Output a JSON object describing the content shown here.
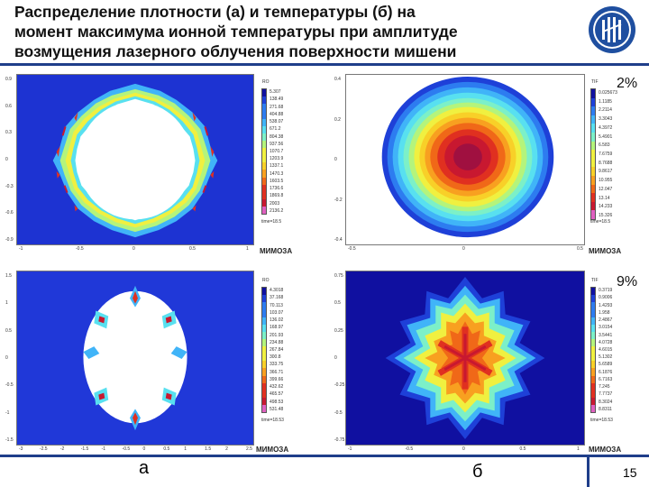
{
  "title": {
    "line1": "Распределение плотности (а) и температуры (б) на",
    "line2": "момент максимума ионной температуры при амплитуде",
    "line3": "возмущения лазерного облучения поверхности мишени"
  },
  "labels": {
    "left_column": "а",
    "right_column": "б",
    "page_number": "15",
    "software": "МИМОЗА",
    "amplitude_top": "2%",
    "amplitude_bottom": "9%"
  },
  "colors": {
    "rule": "#1f3e8a",
    "colormap": [
      "#1010a0",
      "#1e40d8",
      "#2d7cf0",
      "#40b4f8",
      "#58e0f0",
      "#7cf0c8",
      "#b4f47c",
      "#f0f040",
      "#f8d028",
      "#f8a020",
      "#f06818",
      "#e03020",
      "#c81830",
      "#e060c0"
    ]
  },
  "panels": [
    {
      "id": "a-2",
      "cb_title": "RO",
      "cb_values": [
        "5.307",
        "138.49",
        "271.68",
        "404.88",
        "538.07",
        "671.2",
        "804.38",
        "937.56",
        "1070.7",
        "1203.9",
        "1337.1",
        "1470.3",
        "1603.5",
        "1736.6",
        "1869.8",
        "2003",
        "2136.2"
      ],
      "time": "time=18.5",
      "yticks": [
        "0.9",
        "0.6",
        "0.3",
        "0",
        "-0.3",
        "-0.6",
        "-0.9"
      ],
      "xticks": [
        "-1",
        "-0.5",
        "0",
        "0.5",
        "1"
      ]
    },
    {
      "id": "b-2",
      "cb_title": "TIF",
      "cb_values": [
        "0.025673",
        "1.1185",
        "2.2114",
        "3.3043",
        "4.3972",
        "5.4901",
        "6.583",
        "7.6759",
        "8.7688",
        "9.8617",
        "10.955",
        "12.047",
        "13.14",
        "14.233",
        "15.326"
      ],
      "time": "time=18.5",
      "yticks": [
        "0.4",
        "0.2",
        "0",
        "-0.2",
        "-0.4"
      ],
      "xticks": [
        "-0.5",
        "0",
        "0.5"
      ]
    },
    {
      "id": "a-9",
      "cb_title": "RO",
      "cb_values": [
        "4.3018",
        "37.168",
        "70.113",
        "103.07",
        "136.02",
        "168.97",
        "201.93",
        "234.88",
        "267.84",
        "300.8",
        "333.75",
        "366.71",
        "399.66",
        "432.62",
        "465.57",
        "498.53",
        "531.48"
      ],
      "time": "time=18.53",
      "yticks": [
        "1.5",
        "1",
        "0.5",
        "0",
        "-0.5",
        "-1",
        "-1.5"
      ],
      "xticks": [
        "-3",
        "-2.5",
        "-2",
        "-1.5",
        "-1",
        "-0.5",
        "0",
        "0.5",
        "1",
        "1.5",
        "2",
        "2.5"
      ]
    },
    {
      "id": "b-9",
      "cb_title": "TIF",
      "cb_values": [
        "0.3719",
        "0.9006",
        "1.4293",
        "1.958",
        "2.4867",
        "3.0154",
        "3.5441",
        "4.0728",
        "4.6015",
        "5.1302",
        "5.6589",
        "6.1876",
        "6.7163",
        "7.245",
        "7.7737",
        "8.3024",
        "8.8311"
      ],
      "time": "time=18.53",
      "yticks": [
        "0.75",
        "0.5",
        "0.25",
        "0",
        "-0.25",
        "-0.5",
        "-0.75"
      ],
      "xticks": [
        "-1",
        "-0.5",
        "0",
        "0.5",
        "1"
      ]
    }
  ]
}
